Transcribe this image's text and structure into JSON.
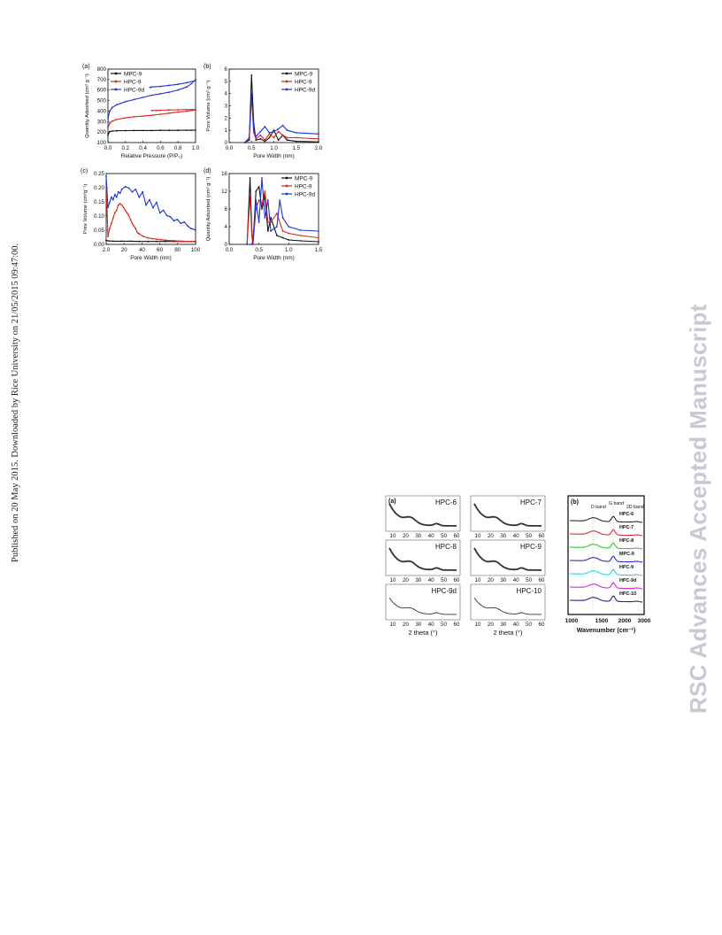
{
  "side_note": "Published on 20 May 2015. Downloaded by Rice University on 21/05/2015 09:47:00.",
  "watermark": "RSC Advances Accepted Manuscript",
  "colors": {
    "MPC-9": "#111111",
    "HPC-9": "#d9241c",
    "HPC-9d": "#1c33d9"
  },
  "chart_data": [
    {
      "panel": "(a)",
      "type": "line",
      "xlabel": "Relative Pressure (P/P₀)",
      "ylabel": "Quantity Adsorbed (cm³ g⁻¹)",
      "xlim": [
        0.0,
        1.0
      ],
      "ylim": [
        100,
        800
      ],
      "xticks": [
        "0.0",
        "0.2",
        "0.4",
        "0.6",
        "0.8",
        "1.0"
      ],
      "yticks": [
        "100",
        "200",
        "300",
        "400",
        "500",
        "600",
        "700",
        "800"
      ],
      "legend": "top-left",
      "series": [
        {
          "name": "MPC-9",
          "x": [
            0.0,
            0.02,
            0.05,
            0.1,
            0.2,
            0.3,
            0.4,
            0.5,
            0.6,
            0.7,
            0.8,
            0.9,
            0.95,
            1.0
          ],
          "y": [
            175,
            205,
            210,
            212,
            214,
            215,
            215,
            215,
            216,
            216,
            216,
            217,
            217,
            218
          ]
        },
        {
          "name": "HPC-9",
          "x": [
            0.0,
            0.02,
            0.05,
            0.1,
            0.2,
            0.3,
            0.4,
            0.5,
            0.6,
            0.7,
            0.8,
            0.9,
            0.95,
            1.0
          ],
          "y": [
            240,
            285,
            305,
            320,
            335,
            345,
            352,
            360,
            370,
            380,
            390,
            398,
            405,
            410
          ]
        },
        {
          "name": "HPC-9",
          "x": [
            0.5,
            0.55,
            0.6,
            0.7,
            0.8,
            0.9,
            1.0
          ],
          "y": [
            405,
            405,
            408,
            410,
            412,
            414,
            415
          ]
        },
        {
          "name": "HPC-9d",
          "x": [
            0.0,
            0.02,
            0.05,
            0.1,
            0.2,
            0.3,
            0.4,
            0.5,
            0.6,
            0.7,
            0.8,
            0.9,
            0.95,
            1.0
          ],
          "y": [
            330,
            400,
            435,
            460,
            490,
            510,
            530,
            550,
            565,
            580,
            600,
            630,
            660,
            700
          ]
        },
        {
          "name": "HPC-9d",
          "x": [
            0.48,
            0.5,
            0.6,
            0.7,
            0.8,
            0.9,
            1.0
          ],
          "y": [
            625,
            630,
            635,
            645,
            655,
            670,
            690
          ]
        }
      ]
    },
    {
      "panel": "(b)",
      "type": "line",
      "xlabel": "Pore Width (nm)",
      "ylabel": "Pore Volume (cm³ g⁻¹)",
      "xlim": [
        0.0,
        2.0
      ],
      "ylim": [
        0,
        6
      ],
      "xticks": [
        "0.0",
        "0.5",
        "1.0",
        "1.5",
        "2.0"
      ],
      "yticks": [
        "0",
        "1",
        "2",
        "3",
        "4",
        "5",
        "6"
      ],
      "legend": "top-right",
      "series": [
        {
          "name": "MPC-9",
          "x": [
            0.35,
            0.45,
            0.5,
            0.55,
            0.6,
            0.7,
            0.8,
            0.9,
            1.0,
            1.1,
            1.2,
            1.3,
            1.5,
            2.0
          ],
          "y": [
            0,
            0.2,
            5.5,
            1.5,
            0.2,
            0.3,
            0.1,
            0.4,
            1.0,
            0.2,
            0.6,
            0.2,
            0.1,
            0.05
          ]
        },
        {
          "name": "HPC-9",
          "x": [
            0.35,
            0.45,
            0.5,
            0.55,
            0.6,
            0.7,
            0.8,
            0.9,
            1.0,
            1.1,
            1.2,
            1.3,
            1.5,
            2.0
          ],
          "y": [
            0,
            0.3,
            3.8,
            0.8,
            0.3,
            0.6,
            0.2,
            0.7,
            0.4,
            0.9,
            0.6,
            0.4,
            0.4,
            0.3
          ]
        },
        {
          "name": "HPC-9d",
          "x": [
            0.35,
            0.45,
            0.5,
            0.55,
            0.6,
            0.7,
            0.8,
            0.9,
            1.0,
            1.1,
            1.2,
            1.3,
            1.5,
            2.0
          ],
          "y": [
            0,
            0.4,
            4.0,
            1.0,
            0.5,
            0.9,
            1.3,
            0.8,
            0.9,
            1.1,
            1.4,
            1.0,
            0.8,
            0.7
          ]
        }
      ]
    },
    {
      "panel": "(c)",
      "type": "line",
      "xlabel": "Pore Width (nm)",
      "ylabel": "Pore Volume (cm³g⁻¹)",
      "xlim": [
        2.0,
        105
      ],
      "ylim": [
        -0.01,
        0.26
      ],
      "xticks": [
        "2.0",
        "20",
        "40",
        "60",
        "80",
        "100"
      ],
      "yticks": [
        "0.00",
        "0.05",
        "0.10",
        "0.15",
        "0.20",
        "0.25"
      ],
      "legend": "none",
      "series": [
        {
          "name": "MPC-9",
          "x": [
            2,
            5,
            10,
            20,
            30,
            40,
            50,
            60,
            70,
            80,
            90,
            100,
            105
          ],
          "y": [
            0.005,
            0.003,
            0.002,
            0.002,
            0.002,
            0.001,
            0.001,
            0.001,
            0.001,
            0.001,
            0.001,
            0.001,
            0.001
          ]
        },
        {
          "name": "HPC-9",
          "x": [
            2,
            4,
            6,
            8,
            10,
            12,
            14,
            16,
            18,
            20,
            22,
            24,
            26,
            28,
            30,
            32,
            34,
            36,
            38,
            40,
            45,
            50,
            55,
            60,
            65,
            70,
            80,
            90,
            100,
            105
          ],
          "y": [
            0.22,
            0.02,
            0.05,
            0.07,
            0.09,
            0.11,
            0.12,
            0.14,
            0.145,
            0.14,
            0.13,
            0.12,
            0.11,
            0.1,
            0.085,
            0.07,
            0.06,
            0.05,
            0.035,
            0.03,
            0.02,
            0.015,
            0.012,
            0.01,
            0.008,
            0.006,
            0.004,
            0.002,
            0.001,
            0.0
          ]
        },
        {
          "name": "HPC-9d",
          "x": [
            2,
            4,
            6,
            8,
            10,
            12,
            14,
            16,
            18,
            20,
            24,
            28,
            32,
            36,
            40,
            44,
            48,
            52,
            56,
            60,
            64,
            68,
            72,
            76,
            80,
            84,
            88,
            92,
            96,
            100,
            105
          ],
          "y": [
            0.25,
            0.13,
            0.15,
            0.17,
            0.16,
            0.18,
            0.17,
            0.19,
            0.185,
            0.2,
            0.21,
            0.205,
            0.19,
            0.2,
            0.17,
            0.19,
            0.14,
            0.16,
            0.13,
            0.15,
            0.11,
            0.12,
            0.1,
            0.095,
            0.08,
            0.085,
            0.07,
            0.075,
            0.06,
            0.05,
            0.045
          ]
        }
      ]
    },
    {
      "panel": "(d)",
      "type": "line",
      "xlabel": "Pore Width (nm)",
      "ylabel": "Quantity Adsorbed (cm³ g⁻¹)",
      "xlim": [
        0.0,
        1.5
      ],
      "ylim": [
        0,
        16
      ],
      "xticks": [
        "0.0",
        "0.5",
        "1.0",
        "1.5"
      ],
      "yticks": [
        "0",
        "4",
        "8",
        "12",
        "16"
      ],
      "legend": "top-right",
      "series": [
        {
          "name": "MPC-9",
          "x": [
            0.3,
            0.35,
            0.38,
            0.4,
            0.45,
            0.5,
            0.55,
            0.6,
            0.65,
            0.7,
            0.8,
            0.9,
            1.0,
            1.2,
            1.5
          ],
          "y": [
            0,
            15,
            3,
            0,
            12,
            13,
            8,
            11,
            3,
            6,
            2,
            1.5,
            1,
            0.8,
            0.6
          ]
        },
        {
          "name": "HPC-9",
          "x": [
            0.3,
            0.35,
            0.38,
            0.4,
            0.45,
            0.5,
            0.55,
            0.6,
            0.65,
            0.7,
            0.8,
            0.9,
            1.0,
            1.2,
            1.5
          ],
          "y": [
            0,
            11,
            2,
            0,
            8,
            10,
            9,
            12,
            5,
            5,
            7,
            3,
            2.5,
            2,
            1.5
          ]
        },
        {
          "name": "HPC-9d",
          "x": [
            0.3,
            0.35,
            0.38,
            0.4,
            0.45,
            0.5,
            0.55,
            0.6,
            0.65,
            0.7,
            0.8,
            0.85,
            0.9,
            1.0,
            1.2,
            1.5
          ],
          "y": [
            0,
            0,
            0,
            1,
            10,
            5,
            15,
            6,
            10,
            3,
            4,
            10,
            6,
            4,
            3.2,
            3
          ]
        }
      ]
    }
  ],
  "fig2": {
    "panel_a": "(a)",
    "panel_b": "(b)",
    "xrd_xlabel": "2 theta (°)",
    "xrd_ticks": [
      "10",
      "20",
      "30",
      "40",
      "50",
      "60"
    ],
    "xrd_panels": [
      "HPC-6",
      "HPC-7",
      "HPC-8",
      "HPC-9",
      "HPC-9d",
      "HPC-10"
    ],
    "raman": {
      "band_labels": [
        "D band",
        "G band",
        "2D band"
      ],
      "labels": [
        "HPC-6",
        "HPC-7",
        "HPC-8",
        "MPC-9",
        "HPC-9",
        "HPC-9d",
        "HPC-10"
      ],
      "colors": [
        "#2b2b2b",
        "#e02a2a",
        "#2ecc2e",
        "#2a2ad6",
        "#2ad6d6",
        "#d62ad6",
        "#1a2a8a"
      ],
      "xlabel": "Wavenumber (cm⁻¹)",
      "xticks": [
        "1000",
        "1500",
        "2000",
        "3000"
      ]
    }
  }
}
